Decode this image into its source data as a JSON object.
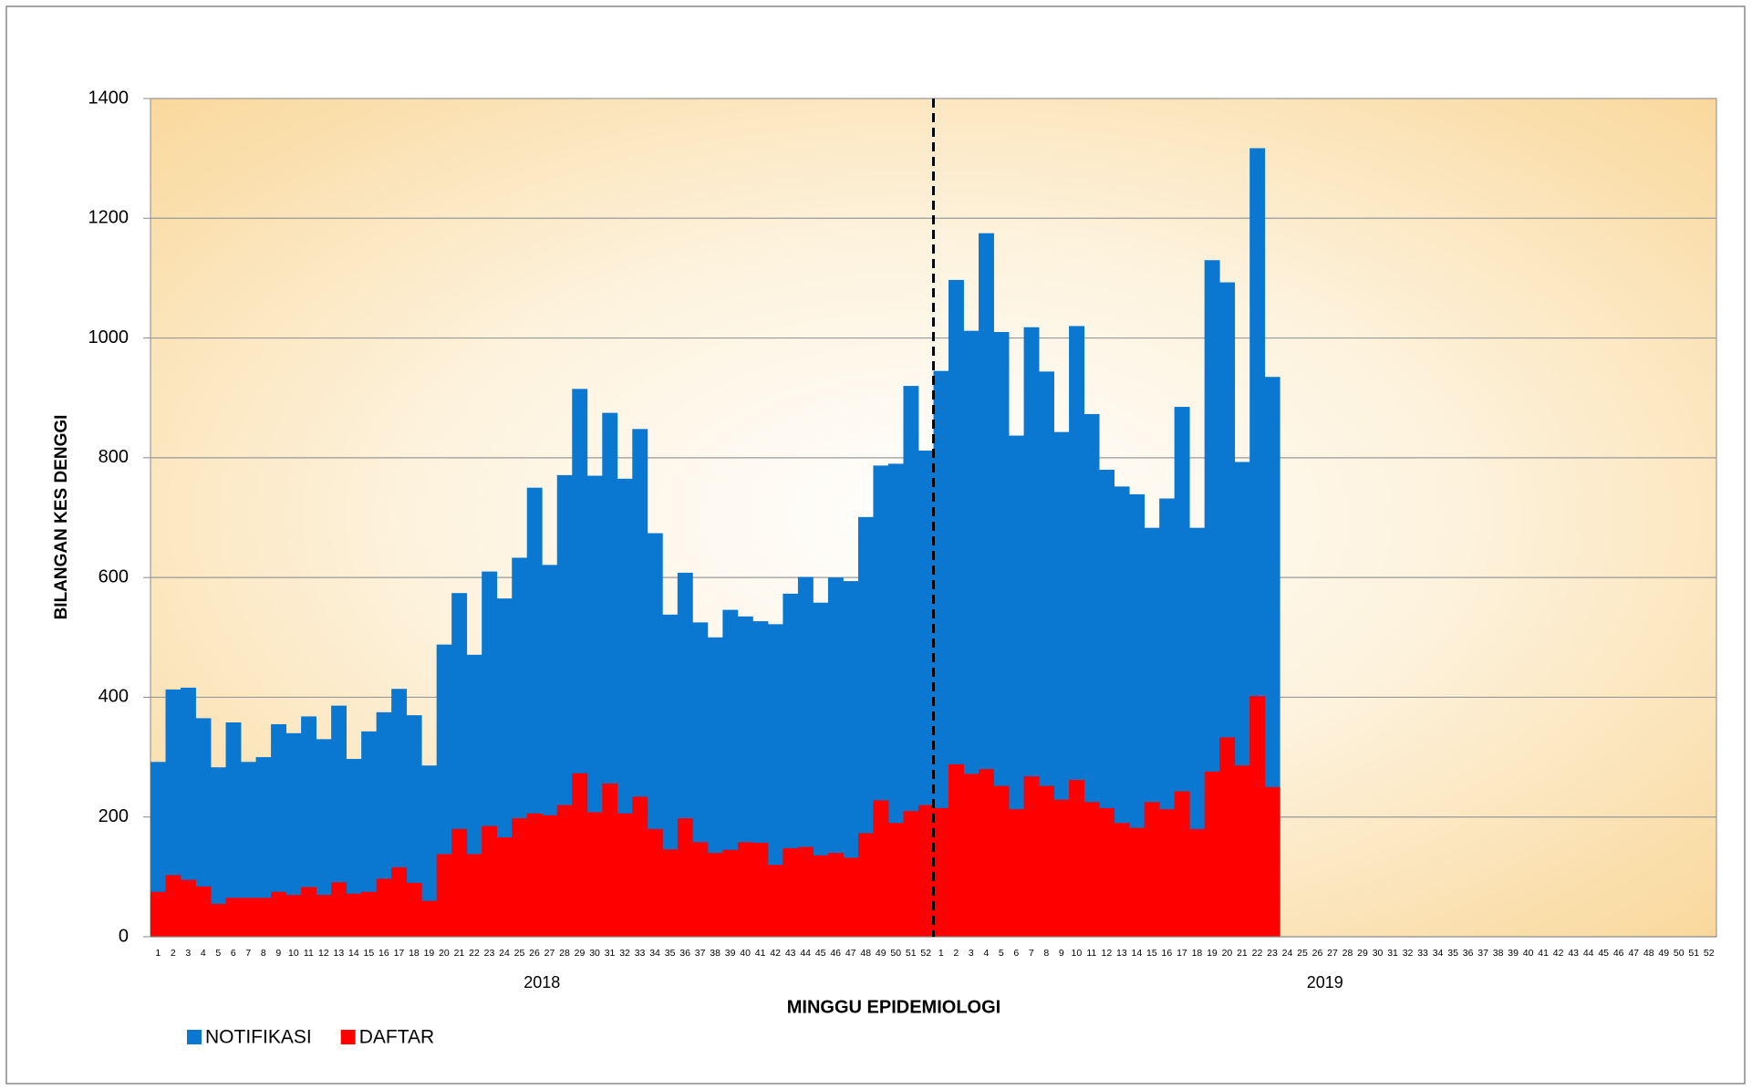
{
  "chart_data": {
    "type": "bar",
    "y_label": "BILANGAN KES DENGGI",
    "x_label": "MINGGU EPIDEMIOLOGI",
    "groups": [
      "2018",
      "2019"
    ],
    "categories": [
      "1",
      "2",
      "3",
      "4",
      "5",
      "6",
      "7",
      "8",
      "9",
      "10",
      "11",
      "12",
      "13",
      "14",
      "15",
      "16",
      "17",
      "18",
      "19",
      "20",
      "21",
      "22",
      "23",
      "24",
      "25",
      "26",
      "27",
      "28",
      "29",
      "30",
      "31",
      "32",
      "33",
      "34",
      "35",
      "36",
      "37",
      "38",
      "39",
      "40",
      "41",
      "42",
      "43",
      "44",
      "45",
      "46",
      "47",
      "48",
      "49",
      "50",
      "51",
      "52",
      "1",
      "2",
      "3",
      "4",
      "5",
      "6",
      "7",
      "8",
      "9",
      "10",
      "11",
      "12",
      "13",
      "14",
      "15",
      "16",
      "17",
      "18",
      "19",
      "20",
      "21",
      "22",
      "23",
      "24",
      "25",
      "26",
      "27",
      "28",
      "29",
      "30",
      "31",
      "32",
      "33",
      "34",
      "35",
      "36",
      "37",
      "38",
      "39",
      "40",
      "41",
      "42",
      "43",
      "44",
      "45",
      "46",
      "47",
      "48",
      "49",
      "50",
      "51",
      "52"
    ],
    "series": [
      {
        "name": "NOTIFIKASI",
        "color": "#0a77d0",
        "values": [
          292,
          413,
          416,
          365,
          283,
          358,
          292,
          300,
          355,
          340,
          368,
          330,
          386,
          297,
          343,
          375,
          414,
          370,
          286,
          488,
          574,
          471,
          610,
          565,
          633,
          750,
          621,
          771,
          915,
          770,
          875,
          765,
          848,
          674,
          538,
          608,
          525,
          500,
          546,
          535,
          527,
          522,
          573,
          601,
          558,
          600,
          594,
          701,
          787,
          790,
          920,
          812,
          945,
          1097,
          1012,
          1175,
          1010,
          837,
          1018,
          944,
          843,
          1020,
          873,
          780,
          752,
          739,
          683,
          732,
          885,
          683,
          1130,
          1093,
          793,
          1317,
          935,
          null,
          null,
          null,
          null,
          null,
          null,
          null,
          null,
          null,
          null,
          null,
          null,
          null,
          null,
          null,
          null,
          null,
          null,
          null,
          null,
          null,
          null,
          null,
          null,
          null,
          null,
          null,
          null,
          null
        ]
      },
      {
        "name": "DAFTAR",
        "color": "#ff0000",
        "values": [
          75,
          103,
          95,
          84,
          55,
          65,
          65,
          65,
          75,
          70,
          83,
          70,
          91,
          72,
          75,
          97,
          116,
          90,
          60,
          138,
          180,
          138,
          185,
          166,
          198,
          206,
          203,
          220,
          273,
          208,
          256,
          206,
          234,
          180,
          146,
          198,
          158,
          140,
          145,
          158,
          157,
          120,
          148,
          150,
          136,
          140,
          132,
          173,
          228,
          190,
          210,
          220,
          215,
          288,
          272,
          280,
          252,
          213,
          268,
          252,
          229,
          262,
          225,
          215,
          190,
          182,
          225,
          213,
          243,
          180,
          276,
          333,
          286,
          402,
          250,
          null,
          null,
          null,
          null,
          null,
          null,
          null,
          null,
          null,
          null,
          null,
          null,
          null,
          null,
          null,
          null,
          null,
          null,
          null,
          null,
          null,
          null,
          null,
          null,
          null,
          null,
          null,
          null,
          null
        ]
      }
    ],
    "ylim": [
      0,
      1400
    ],
    "yticks": [
      0,
      200,
      400,
      600,
      800,
      1000,
      1200,
      1400
    ],
    "grid": true
  }
}
